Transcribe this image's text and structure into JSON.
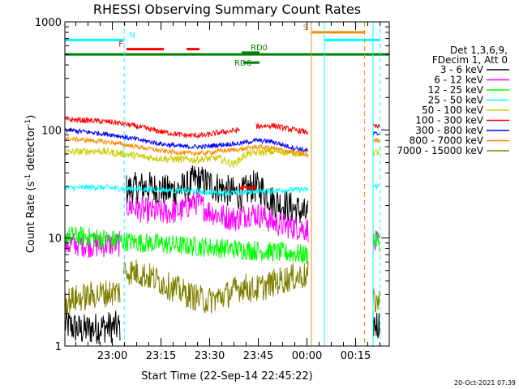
{
  "chart_data": {
    "type": "line",
    "title": "RHESSI Observing Summary Count Rates",
    "xlabel": "Start Time (22-Sep-14 22:45:22)",
    "ylabel_main": "Count Rate (s",
    "ylabel_sup1": "-1",
    "ylabel_mid": " detector",
    "ylabel_sup2": "-1",
    "ylabel_end": ")",
    "yscale": "log",
    "ylim": [
      1,
      1000
    ],
    "xlim_minutes": [
      0,
      100
    ],
    "y_ticks": [
      {
        "value": 1,
        "label": "1"
      },
      {
        "value": 10,
        "label": "10"
      },
      {
        "value": 100,
        "label": "100"
      },
      {
        "value": 1000,
        "label": "1000"
      }
    ],
    "x_ticks": [
      {
        "minutes": 14.63,
        "label": "23:00"
      },
      {
        "minutes": 29.63,
        "label": "23:15"
      },
      {
        "minutes": 44.63,
        "label": "23:30"
      },
      {
        "minutes": 59.63,
        "label": "23:45"
      },
      {
        "minutes": 74.63,
        "label": "00:00"
      },
      {
        "minutes": 89.63,
        "label": "00:15"
      }
    ],
    "legend_header": [
      "Det 1,3,6,9,",
      "FDecim 1, Att 0"
    ],
    "legend_placement": "right",
    "series": [
      {
        "name": "3 - 6 keV",
        "color": "#000000",
        "segments": [
          {
            "x": [
              0,
              5,
              12,
              17
            ],
            "y": [
              1.6,
              1.4,
              1.5,
              1.5
            ]
          },
          {
            "x": [
              19,
              25,
              32,
              38,
              40,
              44,
              49,
              54,
              58,
              61,
              64,
              68,
              72,
              75
            ],
            "y": [
              28,
              30,
              27,
              30,
              35,
              32,
              28,
              25,
              30,
              28,
              22,
              20,
              18,
              16
            ]
          },
          {
            "x": [
              95,
              97
            ],
            "y": [
              1.6,
              1.6
            ]
          }
        ]
      },
      {
        "name": "6 - 12 keV",
        "color": "#ff00ff",
        "segments": [
          {
            "x": [
              0,
              5,
              10,
              15,
              17
            ],
            "y": [
              8.7,
              8.8,
              8.6,
              8.8,
              8.8
            ]
          },
          {
            "x": [
              19,
              24,
              30,
              36,
              40,
              44,
              48,
              53,
              57,
              61,
              64,
              68,
              72,
              75
            ],
            "y": [
              20,
              18,
              17,
              18,
              22,
              18,
              16,
              15,
              17,
              16,
              14,
              13,
              12.5,
              12
            ]
          },
          {
            "x": [
              95,
              97
            ],
            "y": [
              8.8,
              8.8
            ]
          }
        ]
      },
      {
        "name": "12 - 25 keV",
        "color": "#00ff00",
        "segments": [
          {
            "x": [
              0,
              5,
              10,
              15,
              19,
              25,
              30,
              35,
              40,
              45,
              50,
              55,
              60,
              65,
              70,
              75
            ],
            "y": [
              10.5,
              10.3,
              10,
              9.6,
              9.3,
              9,
              8.8,
              8.5,
              8.4,
              8.2,
              8,
              7.8,
              7.6,
              7.4,
              7.2,
              7
            ]
          },
          {
            "x": [
              95,
              97
            ],
            "y": [
              9.5,
              9.5
            ]
          }
        ]
      },
      {
        "name": "25 - 50 keV",
        "color": "#00ffff",
        "segments": [
          {
            "x": [
              0,
              10,
              20,
              30,
              40,
              50,
              60,
              70,
              75
            ],
            "y": [
              29,
              29.5,
              28.5,
              28,
              27,
              26,
              27,
              28,
              28
            ]
          },
          {
            "x": [
              95,
              97
            ],
            "y": [
              30,
              30
            ]
          }
        ]
      },
      {
        "name": "50 - 100 keV",
        "color": "#cccc00",
        "segments": [
          {
            "x": [
              0,
              10,
              18,
              25,
              32,
              40,
              47,
              52,
              56,
              60,
              65,
              70,
              75
            ],
            "y": [
              62,
              64,
              60,
              56,
              54,
              53,
              55,
              48,
              60,
              62,
              63,
              62,
              60
            ]
          },
          {
            "x": [
              95,
              97
            ],
            "y": [
              62,
              62
            ]
          }
        ]
      },
      {
        "name": "100 - 300 keV",
        "color": "#ff0000",
        "segments": [
          {
            "x": [
              0,
              8,
              15,
              22,
              30,
              37,
              43,
              48,
              54
            ],
            "y": [
              125,
              122,
              118,
              108,
              96,
              89,
              89,
              95,
              100
            ]
          },
          {
            "x": [
              54,
              59
            ],
            "y": [
              29,
              29
            ]
          },
          {
            "x": [
              59,
              64,
              69,
              75
            ],
            "y": [
              108,
              110,
              102,
              95
            ]
          },
          {
            "x": [
              95,
              97
            ],
            "y": [
              108,
              106
            ]
          }
        ]
      },
      {
        "name": "300 - 800 keV",
        "color": "#0000ff",
        "segments": [
          {
            "x": [
              0,
              8,
              15,
              22,
              30,
              37,
              43,
              48,
              54,
              59,
              64,
              69,
              75
            ],
            "y": [
              100,
              95,
              90,
              82,
              74,
              70,
              70,
              73,
              75,
              80,
              78,
              70,
              64
            ]
          },
          {
            "x": [
              95,
              97
            ],
            "y": [
              92,
              92
            ]
          }
        ]
      },
      {
        "name": "800 - 7000 keV",
        "color": "#ff8800",
        "segments": [
          {
            "x": [
              0,
              8,
              15,
              22,
              30,
              37,
              43,
              48,
              54,
              59,
              64,
              69,
              75
            ],
            "y": [
              83,
              80,
              76,
              70,
              64,
              61,
              61,
              64,
              66,
              70,
              68,
              63,
              58
            ]
          },
          {
            "x": [
              95,
              97
            ],
            "y": [
              80,
              80
            ]
          }
        ]
      },
      {
        "name": "7000 - 15000 keV",
        "color": "#808000",
        "segments": [
          {
            "x": [
              0,
              5,
              10,
              17
            ],
            "y": [
              2.6,
              2.8,
              3.0,
              3.2
            ]
          },
          {
            "x": [
              18,
              22,
              27,
              32,
              38,
              44,
              50,
              55,
              58,
              62,
              66,
              70,
              75
            ],
            "y": [
              5.0,
              4.8,
              4.3,
              3.6,
              3.0,
              2.6,
              3.0,
              3.6,
              3.3,
              3.6,
              4.0,
              4.3,
              4.5
            ]
          },
          {
            "x": [
              95,
              97
            ],
            "y": [
              2.6,
              2.6
            ]
          }
        ]
      }
    ],
    "night_markers_minutes": [
      18.3,
      97.2
    ],
    "flag_bars": [
      {
        "label": "N",
        "color": "#00ffff",
        "y": 680,
        "segments": [
          [
            0,
            18.3
          ],
          [
            80,
            97.2
          ]
        ]
      },
      {
        "label": "F",
        "color": "#ff0000",
        "y": 560,
        "segments": [
          [
            19,
            30.5
          ],
          [
            37.5,
            41.5
          ]
        ]
      },
      {
        "label": "",
        "color": "#008000",
        "y": 500,
        "segments": [
          [
            0,
            100
          ]
        ]
      },
      {
        "label": "RD6",
        "color": "#008000",
        "y": 420,
        "segments": [
          [
            55,
            60
          ]
        ]
      },
      {
        "label": "RD0",
        "color": "#008000",
        "y": 520,
        "segments": [
          [
            54.5,
            60
          ]
        ]
      },
      {
        "label": "S",
        "color": "#ff8800",
        "y": 800,
        "segments": [
          [
            76,
            92.4
          ]
        ]
      }
    ],
    "saa_lines": [
      {
        "minutes": 76,
        "color": "#ff8800",
        "style": "solid"
      },
      {
        "minutes": 80,
        "color": "#00ffff",
        "style": "solid"
      },
      {
        "minutes": 92.4,
        "color": "#ff8800",
        "style": "dashed"
      },
      {
        "minutes": 95,
        "color": "#00ffff",
        "style": "solid"
      }
    ]
  },
  "footer": {
    "timestamp": "20-Oct-2021 07:39"
  }
}
